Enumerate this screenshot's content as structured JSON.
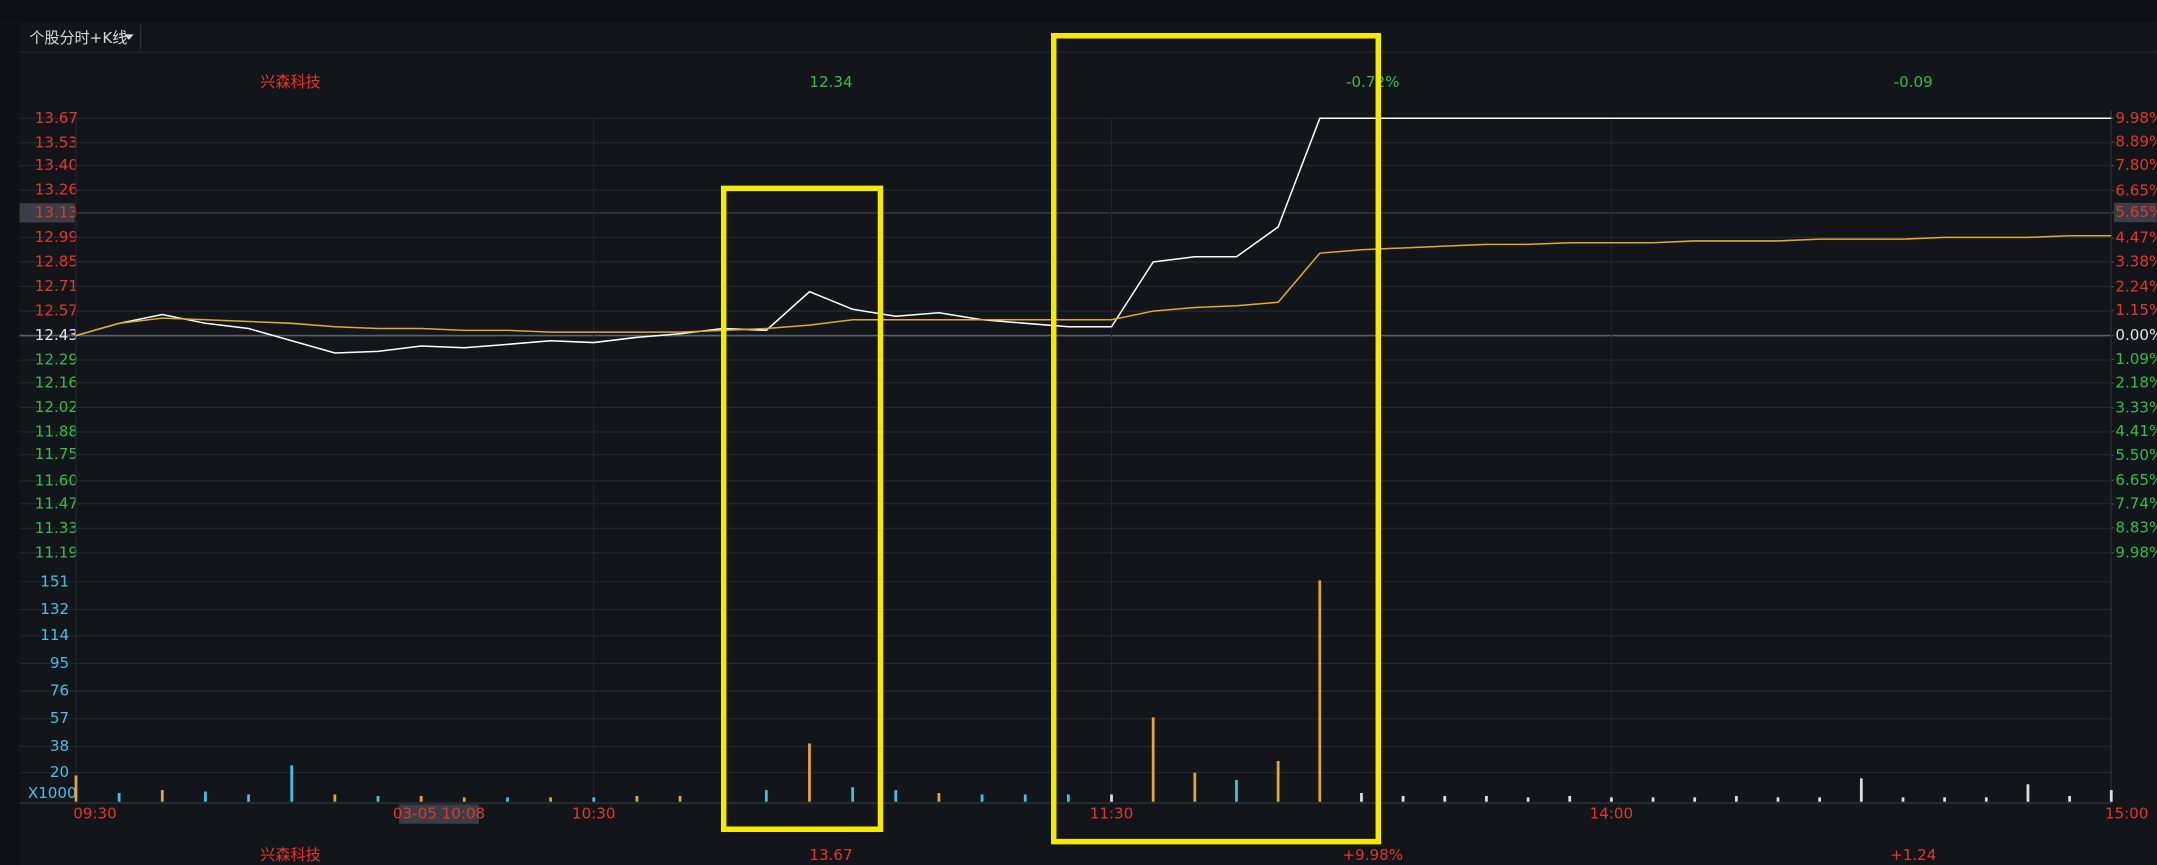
{
  "header": {
    "title": "个股分时+K线"
  },
  "info_top": [
    "兴森科技",
    "12.34",
    "-0.72%",
    "-0.09"
  ],
  "info_bottom": [
    "兴森科技",
    "13.67",
    "+9.98%",
    "+1.24"
  ],
  "chart_data": {
    "type": "line",
    "x": [
      0,
      5,
      10,
      15,
      20,
      25,
      30,
      35,
      40,
      45,
      50,
      55,
      60,
      65,
      70,
      75,
      80,
      85,
      90,
      95,
      100,
      105,
      110,
      115,
      120,
      125,
      130,
      135,
      140,
      145,
      150,
      155,
      160,
      165,
      170,
      175,
      180,
      185,
      190,
      195,
      200,
      205,
      210,
      215,
      220,
      225,
      230,
      235,
      240
    ],
    "xticks": [
      {
        "value": 0,
        "label": "09:30"
      },
      {
        "value": 60,
        "label": "10:30"
      },
      {
        "value": 120,
        "label": "11:30"
      },
      {
        "value": 180,
        "label": "14:00"
      },
      {
        "value": 240,
        "label": "15:00"
      }
    ],
    "ylim": [
      11.19,
      13.67
    ],
    "yticks": [
      13.67,
      13.53,
      {
        "value": 13.4,
        "label": "13.40"
      },
      13.26,
      13.13,
      12.99,
      12.85,
      12.71,
      12.57,
      12.43,
      12.29,
      12.16,
      12.02,
      11.88,
      11.75,
      {
        "value": 11.6,
        "label": "11.60"
      },
      11.47,
      11.33,
      11.19
    ],
    "y2lim": [
      -9.98,
      9.98
    ],
    "y2ticks": [
      {
        "value": 9.98,
        "label": "9.98%"
      },
      {
        "value": 8.89,
        "label": "8.89%"
      },
      {
        "value": 7.8,
        "label": "7.80%"
      },
      {
        "value": 6.65,
        "label": "6.65%"
      },
      {
        "value": 5.65,
        "label": "5.65%"
      },
      {
        "value": 4.47,
        "label": "4.47%"
      },
      {
        "value": 3.38,
        "label": "3.38%"
      },
      {
        "value": 2.24,
        "label": "2.24%"
      },
      {
        "value": 1.15,
        "label": "1.15%"
      },
      {
        "value": 0,
        "label": "0.00%"
      },
      {
        "value": -1.09,
        "label": "1.09%"
      },
      {
        "value": -2.18,
        "label": "2.18%"
      },
      {
        "value": -3.33,
        "label": "3.33%"
      },
      {
        "value": -4.41,
        "label": "4.41%"
      },
      {
        "value": -5.5,
        "label": "5.50%"
      },
      {
        "value": -6.65,
        "label": "6.65%"
      },
      {
        "value": -7.74,
        "label": "7.74%"
      },
      {
        "value": -8.83,
        "label": "8.83%"
      },
      {
        "value": -9.98,
        "label": "9.98%"
      }
    ],
    "base": 12.43,
    "up_color": "#e8332a",
    "down_color": "#2fbf4c",
    "flat_color": "#e6e6e6",
    "series": [
      {
        "color": "#ffffff",
        "values": [
          12.43,
          12.5,
          12.55,
          12.5,
          12.47,
          12.4,
          12.33,
          12.34,
          12.37,
          12.36,
          12.38,
          12.4,
          12.39,
          12.42,
          12.44,
          12.47,
          12.46,
          12.68,
          12.58,
          12.54,
          12.56,
          12.52,
          12.5,
          12.48,
          12.48,
          12.85,
          12.88,
          12.88,
          13.05,
          13.67,
          13.67,
          13.67,
          13.67,
          13.67,
          13.67,
          13.67,
          13.67,
          13.67,
          13.67,
          13.67,
          13.67,
          13.67,
          13.67,
          13.67,
          13.67,
          13.67,
          13.67,
          13.67,
          13.67
        ]
      },
      {
        "color": "#e0a830",
        "values": [
          12.43,
          12.5,
          12.53,
          12.52,
          12.51,
          12.5,
          12.48,
          12.47,
          12.47,
          12.46,
          12.46,
          12.45,
          12.45,
          12.45,
          12.45,
          12.46,
          12.47,
          12.49,
          12.52,
          12.52,
          12.52,
          12.52,
          12.52,
          12.52,
          12.52,
          12.57,
          12.59,
          12.6,
          12.62,
          12.9,
          12.92,
          12.93,
          12.94,
          12.95,
          12.95,
          12.96,
          12.96,
          12.96,
          12.97,
          12.97,
          12.97,
          12.98,
          12.98,
          12.98,
          12.99,
          12.99,
          12.99,
          13.0,
          13.0
        ]
      }
    ],
    "cursor": {
      "time_label": "03-05 10:08",
      "price": 13.13
    },
    "volume": {
      "ylim": [
        0,
        170
      ],
      "yticks": [
        151,
        132,
        114,
        95,
        76,
        57,
        38,
        20
      ],
      "tick_color": "#3fc3e6",
      "unit_label": "X1000",
      "values": [
        18,
        6,
        8,
        7,
        5,
        25,
        5,
        4,
        4,
        3,
        3,
        3,
        3,
        4,
        4,
        12,
        8,
        40,
        10,
        8,
        6,
        5,
        5,
        5,
        5,
        58,
        20,
        15,
        28,
        152,
        6,
        4,
        4,
        4,
        3,
        4,
        3,
        3,
        3,
        4,
        3,
        3,
        16,
        3,
        3,
        3,
        12,
        4,
        8
      ],
      "colors": [
        "#e8a33a",
        "#3fc3e6",
        "#e8a33a",
        "#3fc3e6",
        "#3fc3e6",
        "#3fc3e6",
        "#e8a33a",
        "#3fc3e6",
        "#e8a33a",
        "#e8a33a",
        "#3fc3e6",
        "#e8a33a",
        "#3fc3e6",
        "#e8a33a",
        "#e8a33a",
        "#e8a33a",
        "#3fc3e6",
        "#e8a33a",
        "#3fc3e6",
        "#3fc3e6",
        "#e8a33a",
        "#3fc3e6",
        "#3fc3e6",
        "#3fc3e6",
        "#dddddd",
        "#e8a33a",
        "#e8a33a",
        "#3fc3e6",
        "#e8a33a",
        "#e8a33a",
        "#dddddd",
        "#dddddd",
        "#dddddd",
        "#dddddd",
        "#dddddd",
        "#dddddd",
        "#dddddd",
        "#dddddd",
        "#dddddd",
        "#dddddd",
        "#dddddd",
        "#dddddd",
        "#dddddd",
        "#dddddd",
        "#dddddd",
        "#dddddd",
        "#dddddd",
        "#dddddd",
        "#dddddd"
      ]
    }
  }
}
